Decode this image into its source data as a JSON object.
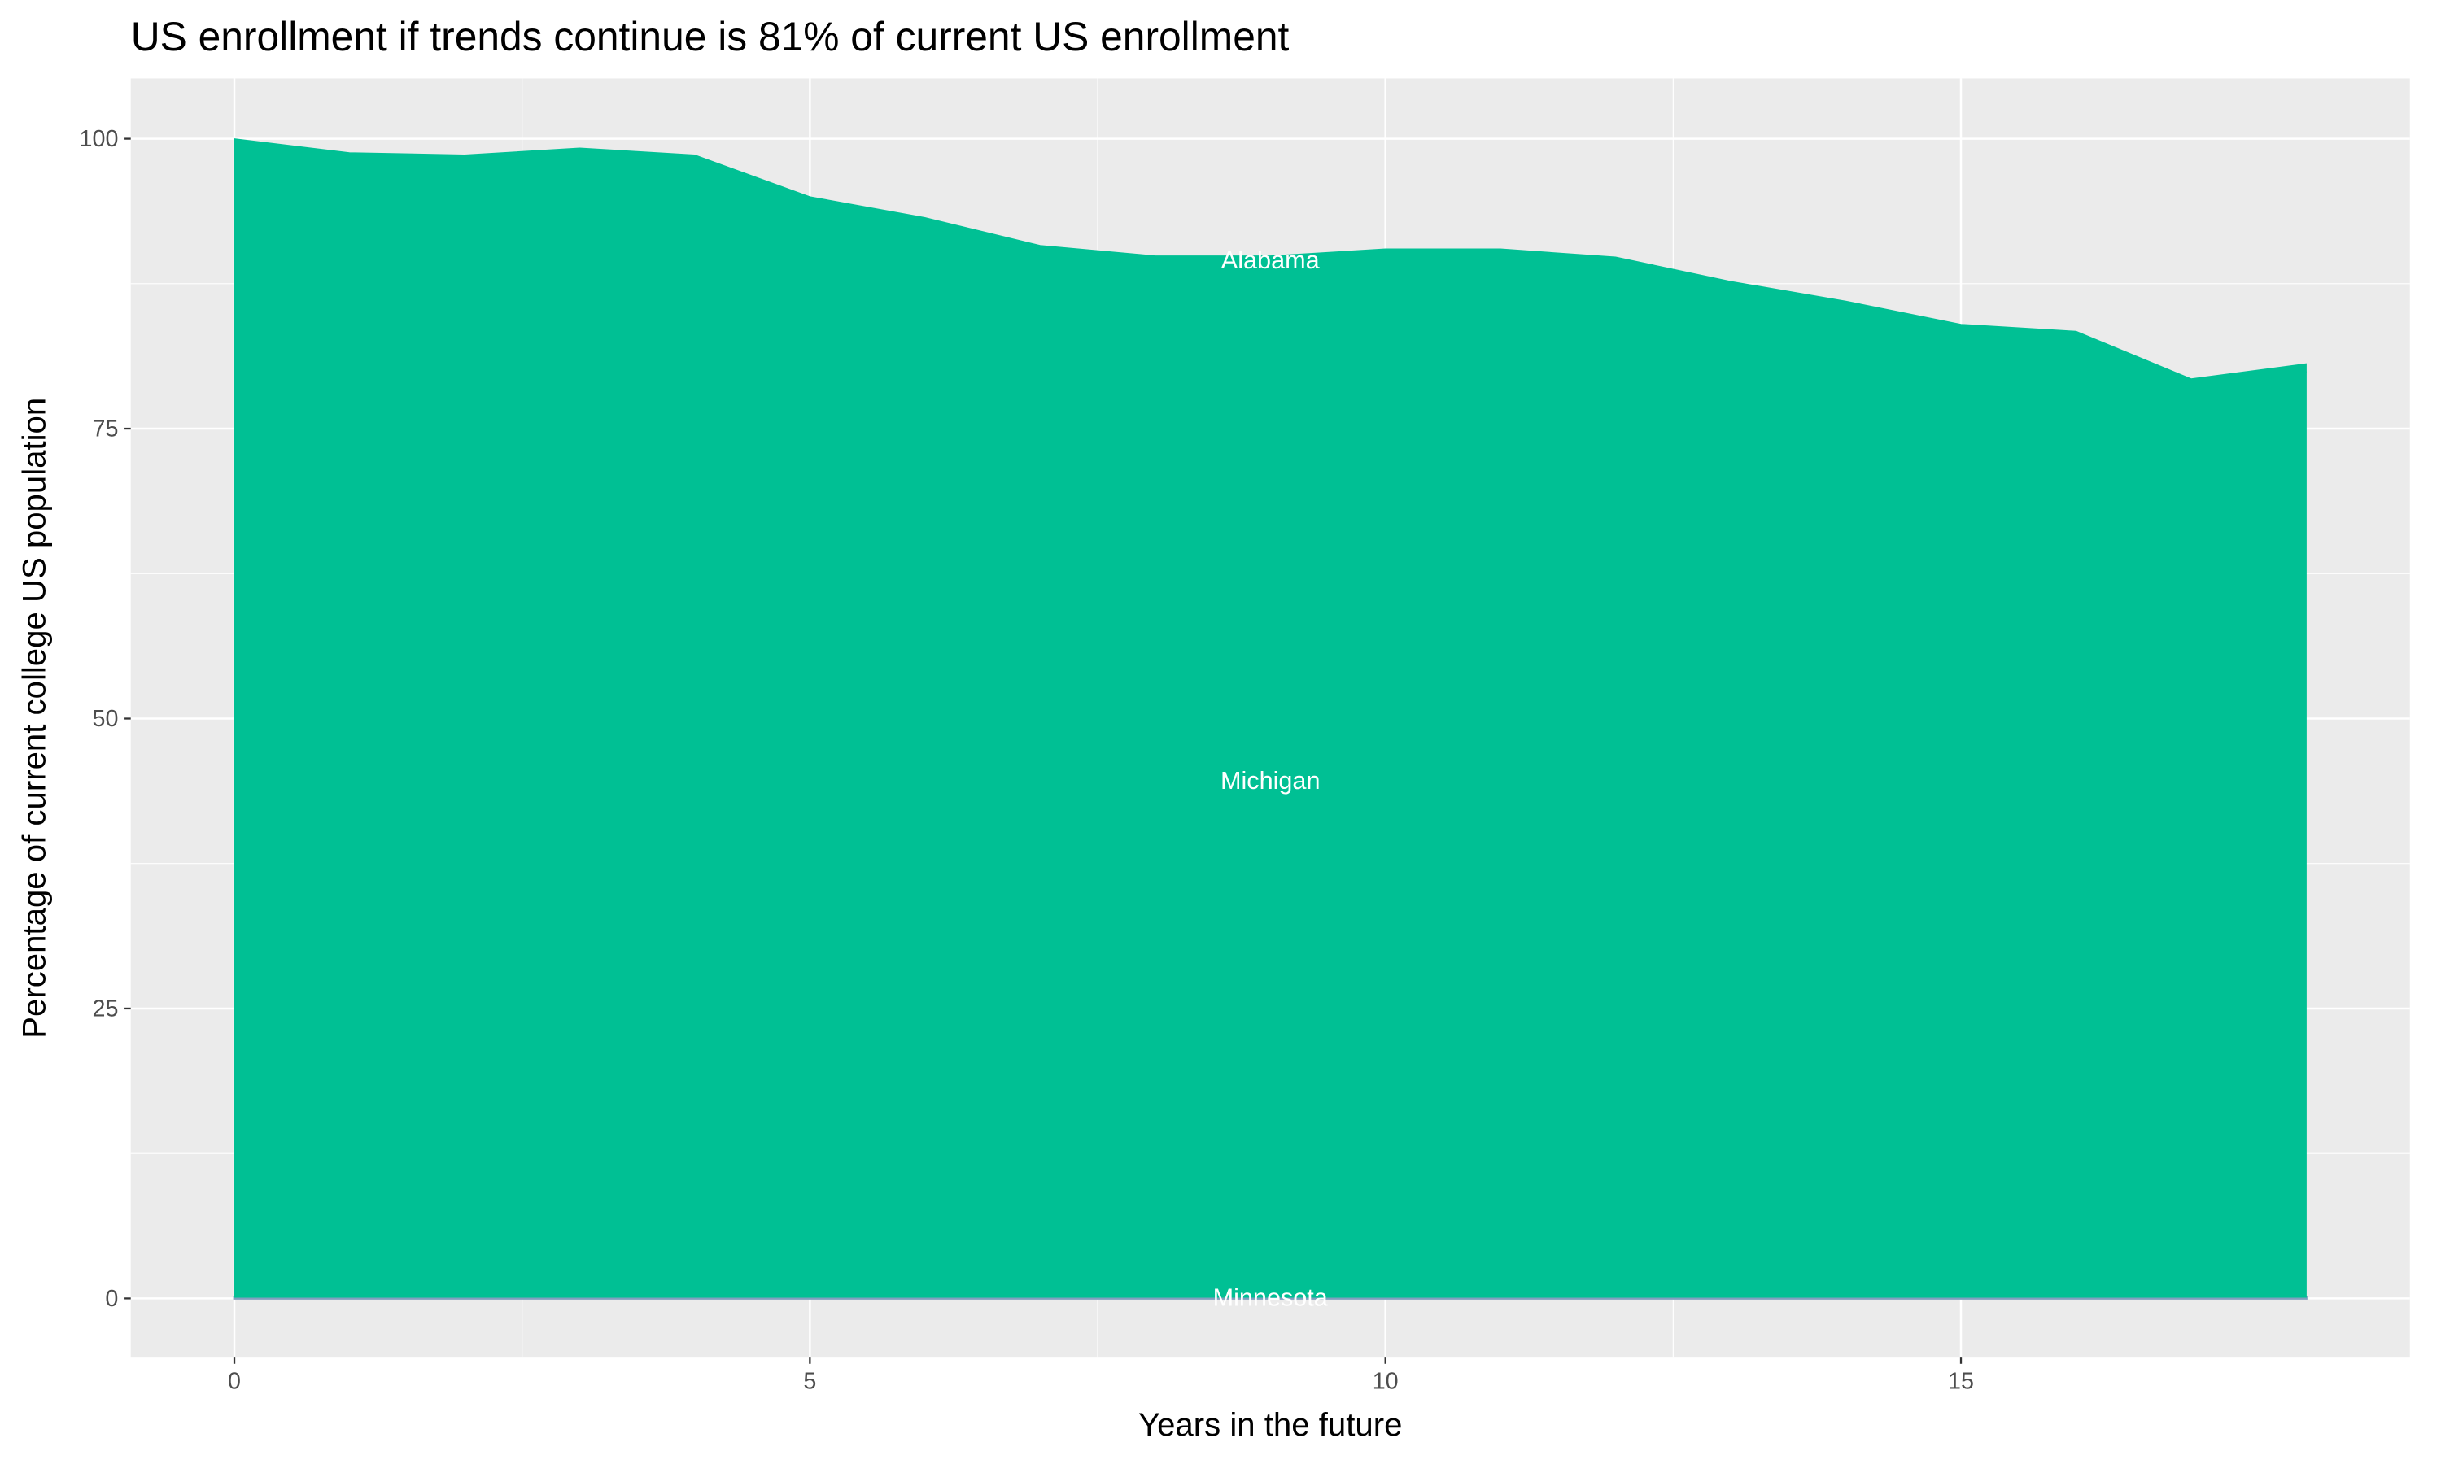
{
  "chart_data": {
    "type": "stacked-area",
    "title": "US enrollment if trends continue is 81% of current US enrollment",
    "x_label": "Years in the future",
    "y_label": "Percentage of current college US population",
    "x": [
      0,
      1,
      2,
      3,
      4,
      5,
      6,
      7,
      8,
      9,
      10,
      11,
      12,
      13,
      14,
      15,
      16,
      17,
      18
    ],
    "series": [
      {
        "name": "Minnesota",
        "color": "#7f9fbf",
        "values": [
          0.1,
          0.1,
          0.1,
          0.1,
          0.1,
          0.1,
          0.1,
          0.1,
          0.1,
          0.1,
          0.1,
          0.1,
          0.1,
          0.1,
          0.1,
          0.1,
          0.1,
          0.1,
          0.1
        ]
      },
      {
        "name": "Michigan",
        "color": "#00C094",
        "values": [
          99.0,
          97.8,
          97.6,
          98.2,
          97.6,
          94.1,
          92.3,
          89.9,
          89.0,
          89.0,
          89.6,
          89.6,
          88.9,
          86.8,
          85.1,
          83.1,
          82.5,
          78.5,
          79.8
        ]
      },
      {
        "name": "Alabama",
        "color": "#00C094",
        "values": [
          0.9,
          0.9,
          0.9,
          0.9,
          0.9,
          0.8,
          0.8,
          0.8,
          0.8,
          0.8,
          0.8,
          0.8,
          0.8,
          0.8,
          0.8,
          0.8,
          0.8,
          0.7,
          0.7
        ]
      }
    ],
    "xlim": [
      -0.9,
      18.9
    ],
    "ylim": [
      -5.1,
      105.2
    ],
    "xticks": [
      0,
      5,
      10,
      15
    ],
    "yticks": [
      0,
      25,
      50,
      75,
      100
    ],
    "grid": true
  }
}
